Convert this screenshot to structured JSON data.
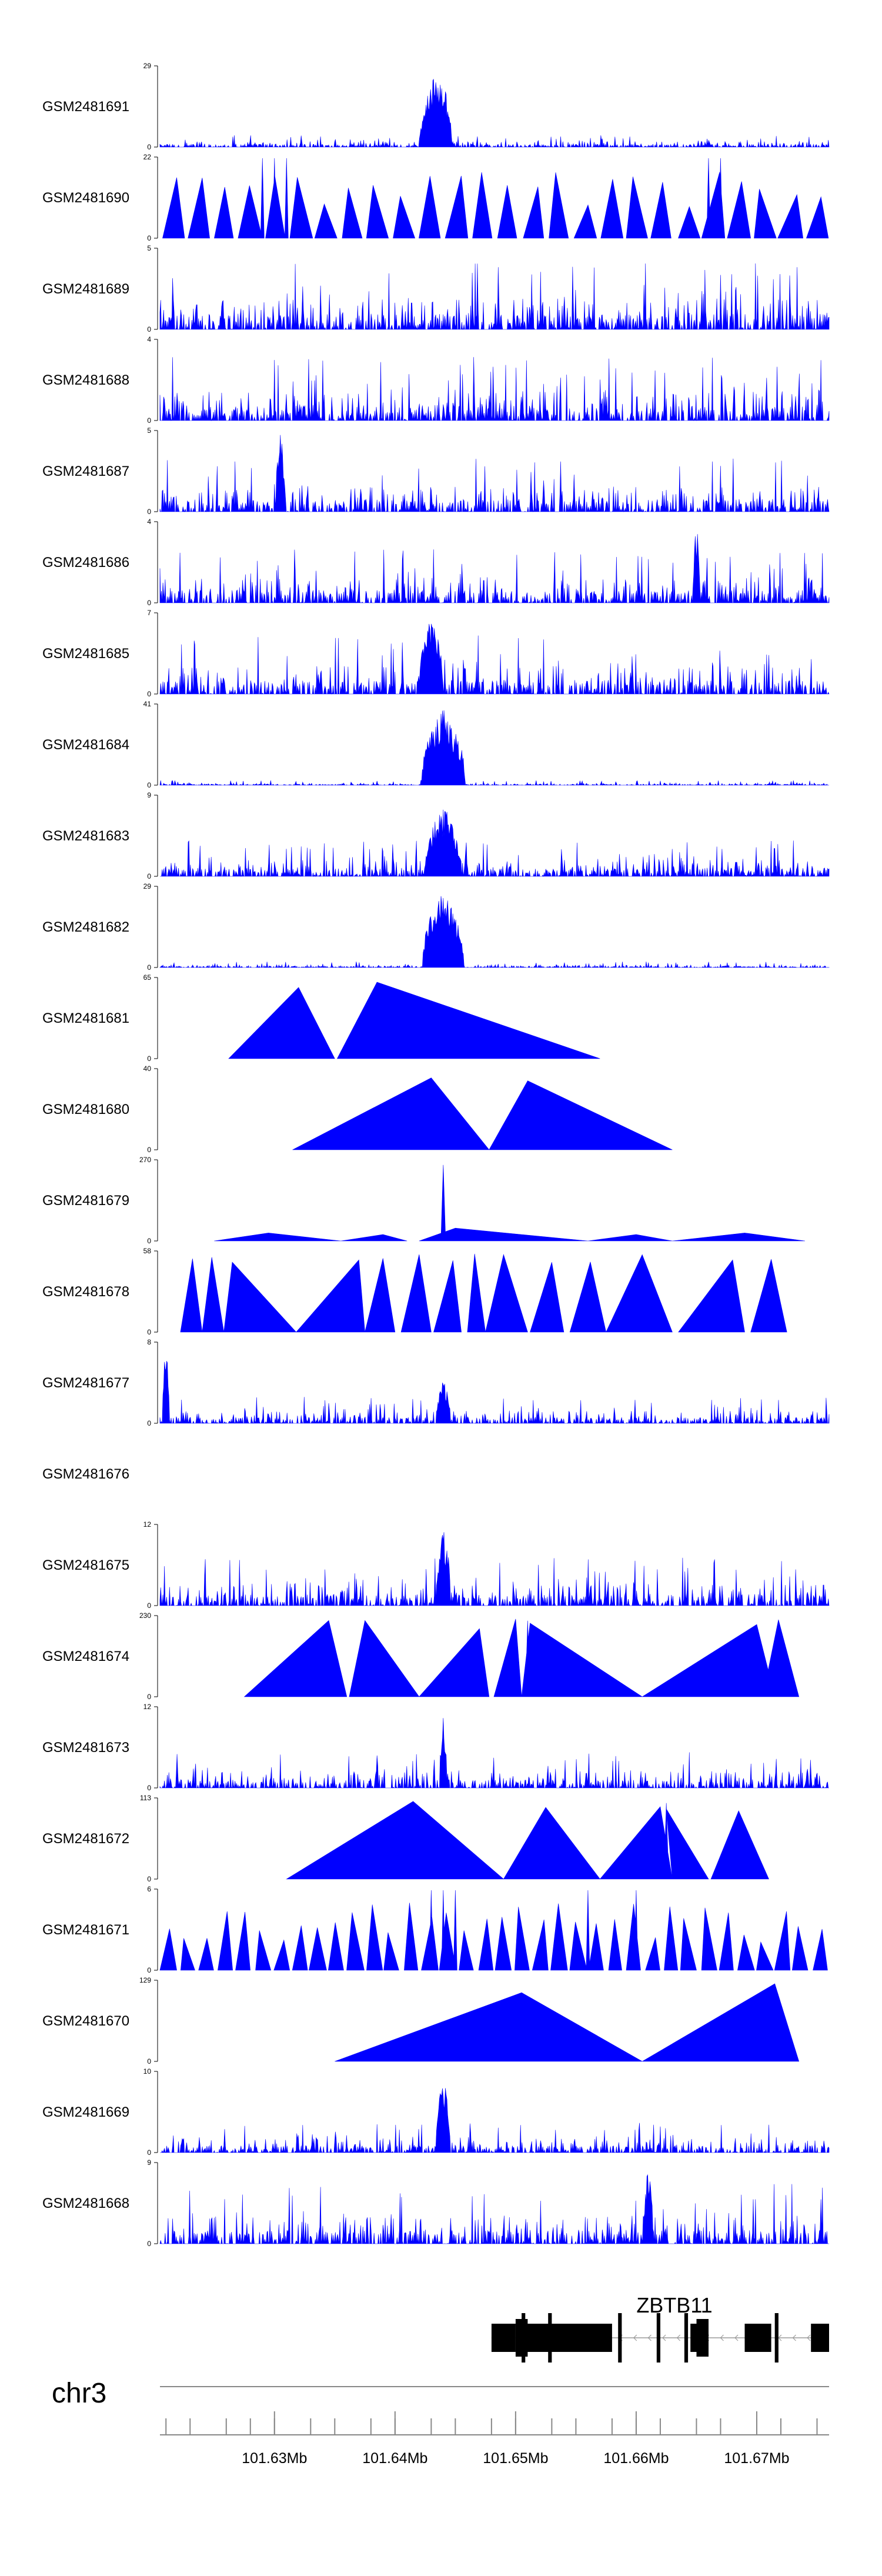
{
  "colors": {
    "signal": "#0000ff",
    "axis": "#000000",
    "gene": "#000000",
    "intron": "#9a9a9a",
    "chrLine": "#888888"
  },
  "chart_data": {
    "type": "area",
    "title": "",
    "chromosome": "chr3",
    "region": [
      101.6205,
      101.676
    ],
    "tracks": [
      {
        "name": "GSM2481691",
        "max": 29,
        "min": 0,
        "style": "dense",
        "peaks": [
          {
            "center": 101.6435,
            "width": 0.0012,
            "height": 1.0
          },
          {
            "center": 101.6428,
            "width": 0.0008,
            "height": 0.55
          }
        ],
        "base": 0.1
      },
      {
        "name": "GSM2481690",
        "max": 22,
        "min": 0,
        "style": "triangles",
        "n": 26,
        "spikes": [
          101.629,
          101.63,
          101.631,
          101.666,
          101.667
        ],
        "base": 0.55
      },
      {
        "name": "GSM2481689",
        "max": 5,
        "min": 0,
        "style": "dense",
        "peaks": [],
        "base": 0.55
      },
      {
        "name": "GSM2481688",
        "max": 4,
        "min": 0,
        "style": "dense",
        "peaks": [],
        "base": 0.55
      },
      {
        "name": "GSM2481687",
        "max": 5,
        "min": 0,
        "style": "dense",
        "peaks": [
          {
            "center": 101.6305,
            "width": 0.0004,
            "height": 1.0
          }
        ],
        "base": 0.45
      },
      {
        "name": "GSM2481686",
        "max": 4,
        "min": 0,
        "style": "dense",
        "peaks": [
          {
            "center": 101.665,
            "width": 0.0003,
            "height": 1.0
          }
        ],
        "base": 0.45
      },
      {
        "name": "GSM2481685",
        "max": 7,
        "min": 0,
        "style": "dense",
        "peaks": [
          {
            "center": 101.643,
            "width": 0.001,
            "height": 0.95
          }
        ],
        "base": 0.5
      },
      {
        "name": "GSM2481684",
        "max": 41,
        "min": 0,
        "style": "dense",
        "peaks": [
          {
            "center": 101.644,
            "width": 0.0018,
            "height": 0.95
          }
        ],
        "base": 0.04
      },
      {
        "name": "GSM2481683",
        "max": 9,
        "min": 0,
        "style": "dense",
        "peaks": [
          {
            "center": 101.644,
            "width": 0.0015,
            "height": 0.9
          }
        ],
        "base": 0.3
      },
      {
        "name": "GSM2481682",
        "max": 29,
        "min": 0,
        "style": "dense",
        "peaks": [
          {
            "center": 101.644,
            "width": 0.0017,
            "height": 0.95
          }
        ],
        "base": 0.05
      },
      {
        "name": "GSM2481681",
        "max": 65,
        "min": 0,
        "style": "segments",
        "segments": [
          [
            101.6262,
            101.635,
            101.632
          ],
          [
            101.6352,
            101.657,
            101.6385
          ]
        ]
      },
      {
        "name": "GSM2481680",
        "max": 40,
        "min": 0,
        "style": "segments",
        "segments": [
          [
            101.6315,
            101.6478,
            101.643
          ],
          [
            101.6478,
            101.663,
            101.651
          ]
        ]
      },
      {
        "name": "GSM2481679",
        "max": 270,
        "min": 0,
        "style": "segments-low",
        "segments": [
          [
            101.625,
            101.6355,
            101.6295,
            0.1
          ],
          [
            101.6355,
            101.641,
            101.639,
            0.08
          ],
          [
            101.642,
            101.656,
            101.645,
            0.16
          ],
          [
            101.656,
            101.663,
            101.66,
            0.08
          ],
          [
            101.663,
            101.674,
            101.669,
            0.1
          ]
        ],
        "spike": [
          101.644,
          0.95
        ]
      },
      {
        "name": "GSM2481678",
        "max": 58,
        "min": 0,
        "style": "segments",
        "segments": [
          [
            101.6222,
            101.624,
            101.6232
          ],
          [
            101.624,
            101.6258,
            101.6248
          ],
          [
            101.6258,
            101.6318,
            101.6265
          ],
          [
            101.6318,
            101.6375,
            101.637
          ],
          [
            101.6375,
            101.64,
            101.639
          ],
          [
            101.6405,
            101.643,
            101.642
          ],
          [
            101.6432,
            101.6455,
            101.6448
          ],
          [
            101.646,
            101.6475,
            101.6466
          ],
          [
            101.6475,
            101.651,
            101.649
          ],
          [
            101.6512,
            101.654,
            101.653
          ],
          [
            101.6545,
            101.6575,
            101.6562
          ],
          [
            101.6575,
            101.663,
            101.6605
          ],
          [
            101.6635,
            101.669,
            101.668
          ],
          [
            101.6695,
            101.6725,
            101.6712
          ]
        ],
        "spike": [
          101.649,
          0.95
        ],
        "spike2": [
          101.6605,
          0.95
        ]
      },
      {
        "name": "GSM2481677",
        "max": 8,
        "min": 0,
        "style": "dense",
        "peaks": [
          {
            "center": 101.621,
            "width": 0.0003,
            "height": 1.0
          },
          {
            "center": 101.644,
            "width": 0.0006,
            "height": 0.55
          }
        ],
        "base": 0.22
      },
      {
        "name": "GSM2481676",
        "max": null,
        "min": null,
        "style": "empty"
      },
      {
        "name": "GSM2481675",
        "max": 12,
        "min": 0,
        "style": "dense",
        "peaks": [
          {
            "center": 101.644,
            "width": 0.0006,
            "height": 1.0
          }
        ],
        "base": 0.4
      },
      {
        "name": "GSM2481674",
        "max": 230,
        "min": 0,
        "style": "segments",
        "segments": [
          [
            101.6275,
            101.636,
            101.6345
          ],
          [
            101.6362,
            101.642,
            101.6375
          ],
          [
            101.642,
            101.6478,
            101.647
          ],
          [
            101.6482,
            101.6505,
            101.65
          ],
          [
            101.6505,
            101.6605,
            101.6512
          ],
          [
            101.6605,
            101.6715,
            101.67
          ],
          [
            101.6705,
            101.6735,
            101.6718
          ]
        ],
        "spike": [
          101.651,
          0.95
        ]
      },
      {
        "name": "GSM2481673",
        "max": 12,
        "min": 0,
        "style": "dense",
        "peaks": [
          {
            "center": 101.644,
            "width": 0.0003,
            "height": 1.0
          }
        ],
        "base": 0.3
      },
      {
        "name": "GSM2481672",
        "max": 113,
        "min": 0,
        "style": "segments",
        "segments": [
          [
            101.631,
            101.649,
            101.6415
          ],
          [
            101.649,
            101.657,
            101.6525
          ],
          [
            101.657,
            101.663,
            101.662
          ],
          [
            101.663,
            101.666,
            101.6625
          ],
          [
            101.6662,
            101.671,
            101.6685
          ]
        ],
        "spike": [
          101.6625,
          0.95
        ]
      },
      {
        "name": "GSM2481671",
        "max": 6,
        "min": 0,
        "style": "triangles",
        "n": 36,
        "spikes": [
          101.643,
          101.644,
          101.645,
          101.656,
          101.66
        ],
        "base": 0.5
      },
      {
        "name": "GSM2481670",
        "max": 129,
        "min": 0,
        "style": "segments",
        "segments": [
          [
            101.635,
            101.6605,
            101.6505
          ],
          [
            101.6605,
            101.6735,
            101.6715
          ]
        ]
      },
      {
        "name": "GSM2481669",
        "max": 10,
        "min": 0,
        "style": "dense",
        "peaks": [
          {
            "center": 101.644,
            "width": 0.0006,
            "height": 0.95
          }
        ],
        "base": 0.25
      },
      {
        "name": "GSM2481668",
        "max": 9,
        "min": 0,
        "style": "dense",
        "peaks": [
          {
            "center": 101.661,
            "width": 0.0004,
            "height": 1.0
          }
        ],
        "base": 0.5
      }
    ],
    "gene": {
      "name": "ZBTB11",
      "start": 101.648,
      "end": 101.676,
      "strand": "-",
      "exons": [
        [
          101.648,
          101.65
        ],
        [
          101.65,
          101.658
        ],
        [
          101.6505,
          101.6508
        ],
        [
          101.6527,
          101.653
        ],
        [
          101.6585,
          101.6588
        ],
        [
          101.6617,
          101.662
        ],
        [
          101.664,
          101.6643
        ],
        [
          101.6645,
          101.666
        ],
        [
          101.669,
          101.6712
        ],
        [
          101.6715,
          101.6718
        ],
        [
          101.6745,
          101.676
        ]
      ],
      "utr": [
        [
          101.65,
          101.651
        ],
        [
          101.665,
          101.666
        ]
      ]
    },
    "axis": {
      "ticks": [
        101.621,
        101.623,
        101.626,
        101.628,
        101.63,
        101.633,
        101.635,
        101.638,
        101.64,
        101.643,
        101.645,
        101.648,
        101.65,
        101.653,
        101.655,
        101.658,
        101.66,
        101.662,
        101.665,
        101.667,
        101.67,
        101.672,
        101.675
      ],
      "labels": [
        {
          "pos": 101.63,
          "text": "101.63Mb"
        },
        {
          "pos": 101.64,
          "text": "101.64Mb"
        },
        {
          "pos": 101.65,
          "text": "101.65Mb"
        },
        {
          "pos": 101.66,
          "text": "101.66Mb"
        },
        {
          "pos": 101.67,
          "text": "101.67Mb"
        }
      ]
    }
  }
}
